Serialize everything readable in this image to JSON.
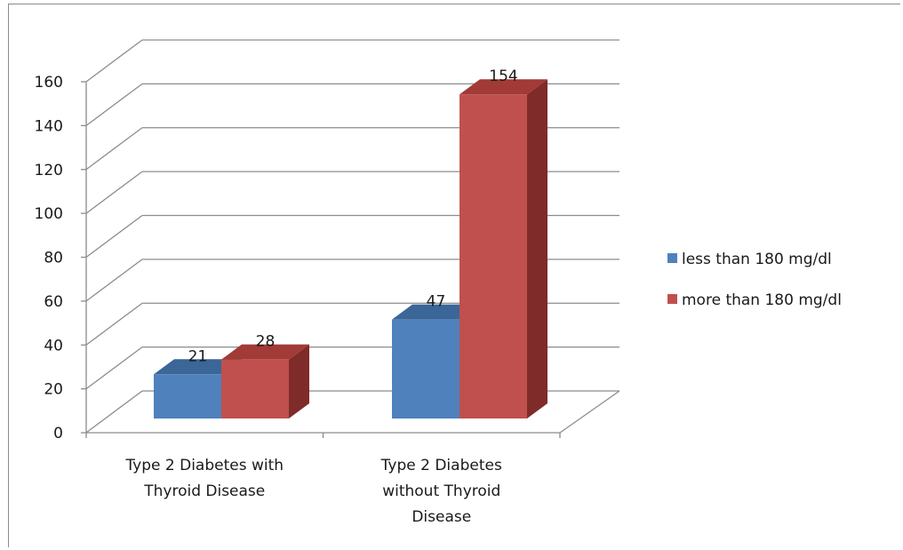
{
  "chart_data": {
    "type": "bar",
    "style": "3d-clustered-column",
    "categories": [
      [
        "Type 2 Diabetes with",
        "Thyroid Disease"
      ],
      [
        "Type 2 Diabetes",
        "without Thyroid",
        "Disease"
      ]
    ],
    "series": [
      {
        "name": "less than 180 mg/dl",
        "values": [
          21,
          47
        ],
        "color": "#4f81bd",
        "top_color": "#3a6698",
        "side_color": "#2e5484"
      },
      {
        "name": "more than 180 mg/dl",
        "values": [
          28,
          154
        ],
        "color": "#c0504d",
        "top_color": "#a23a37",
        "side_color": "#7f2b29"
      }
    ],
    "ylim": [
      0,
      160
    ],
    "yticks": [
      "0",
      "20",
      "40",
      "60",
      "80",
      "100",
      "120",
      "140",
      "160"
    ],
    "grid": true,
    "legend_position": "right",
    "data_labels": true
  }
}
